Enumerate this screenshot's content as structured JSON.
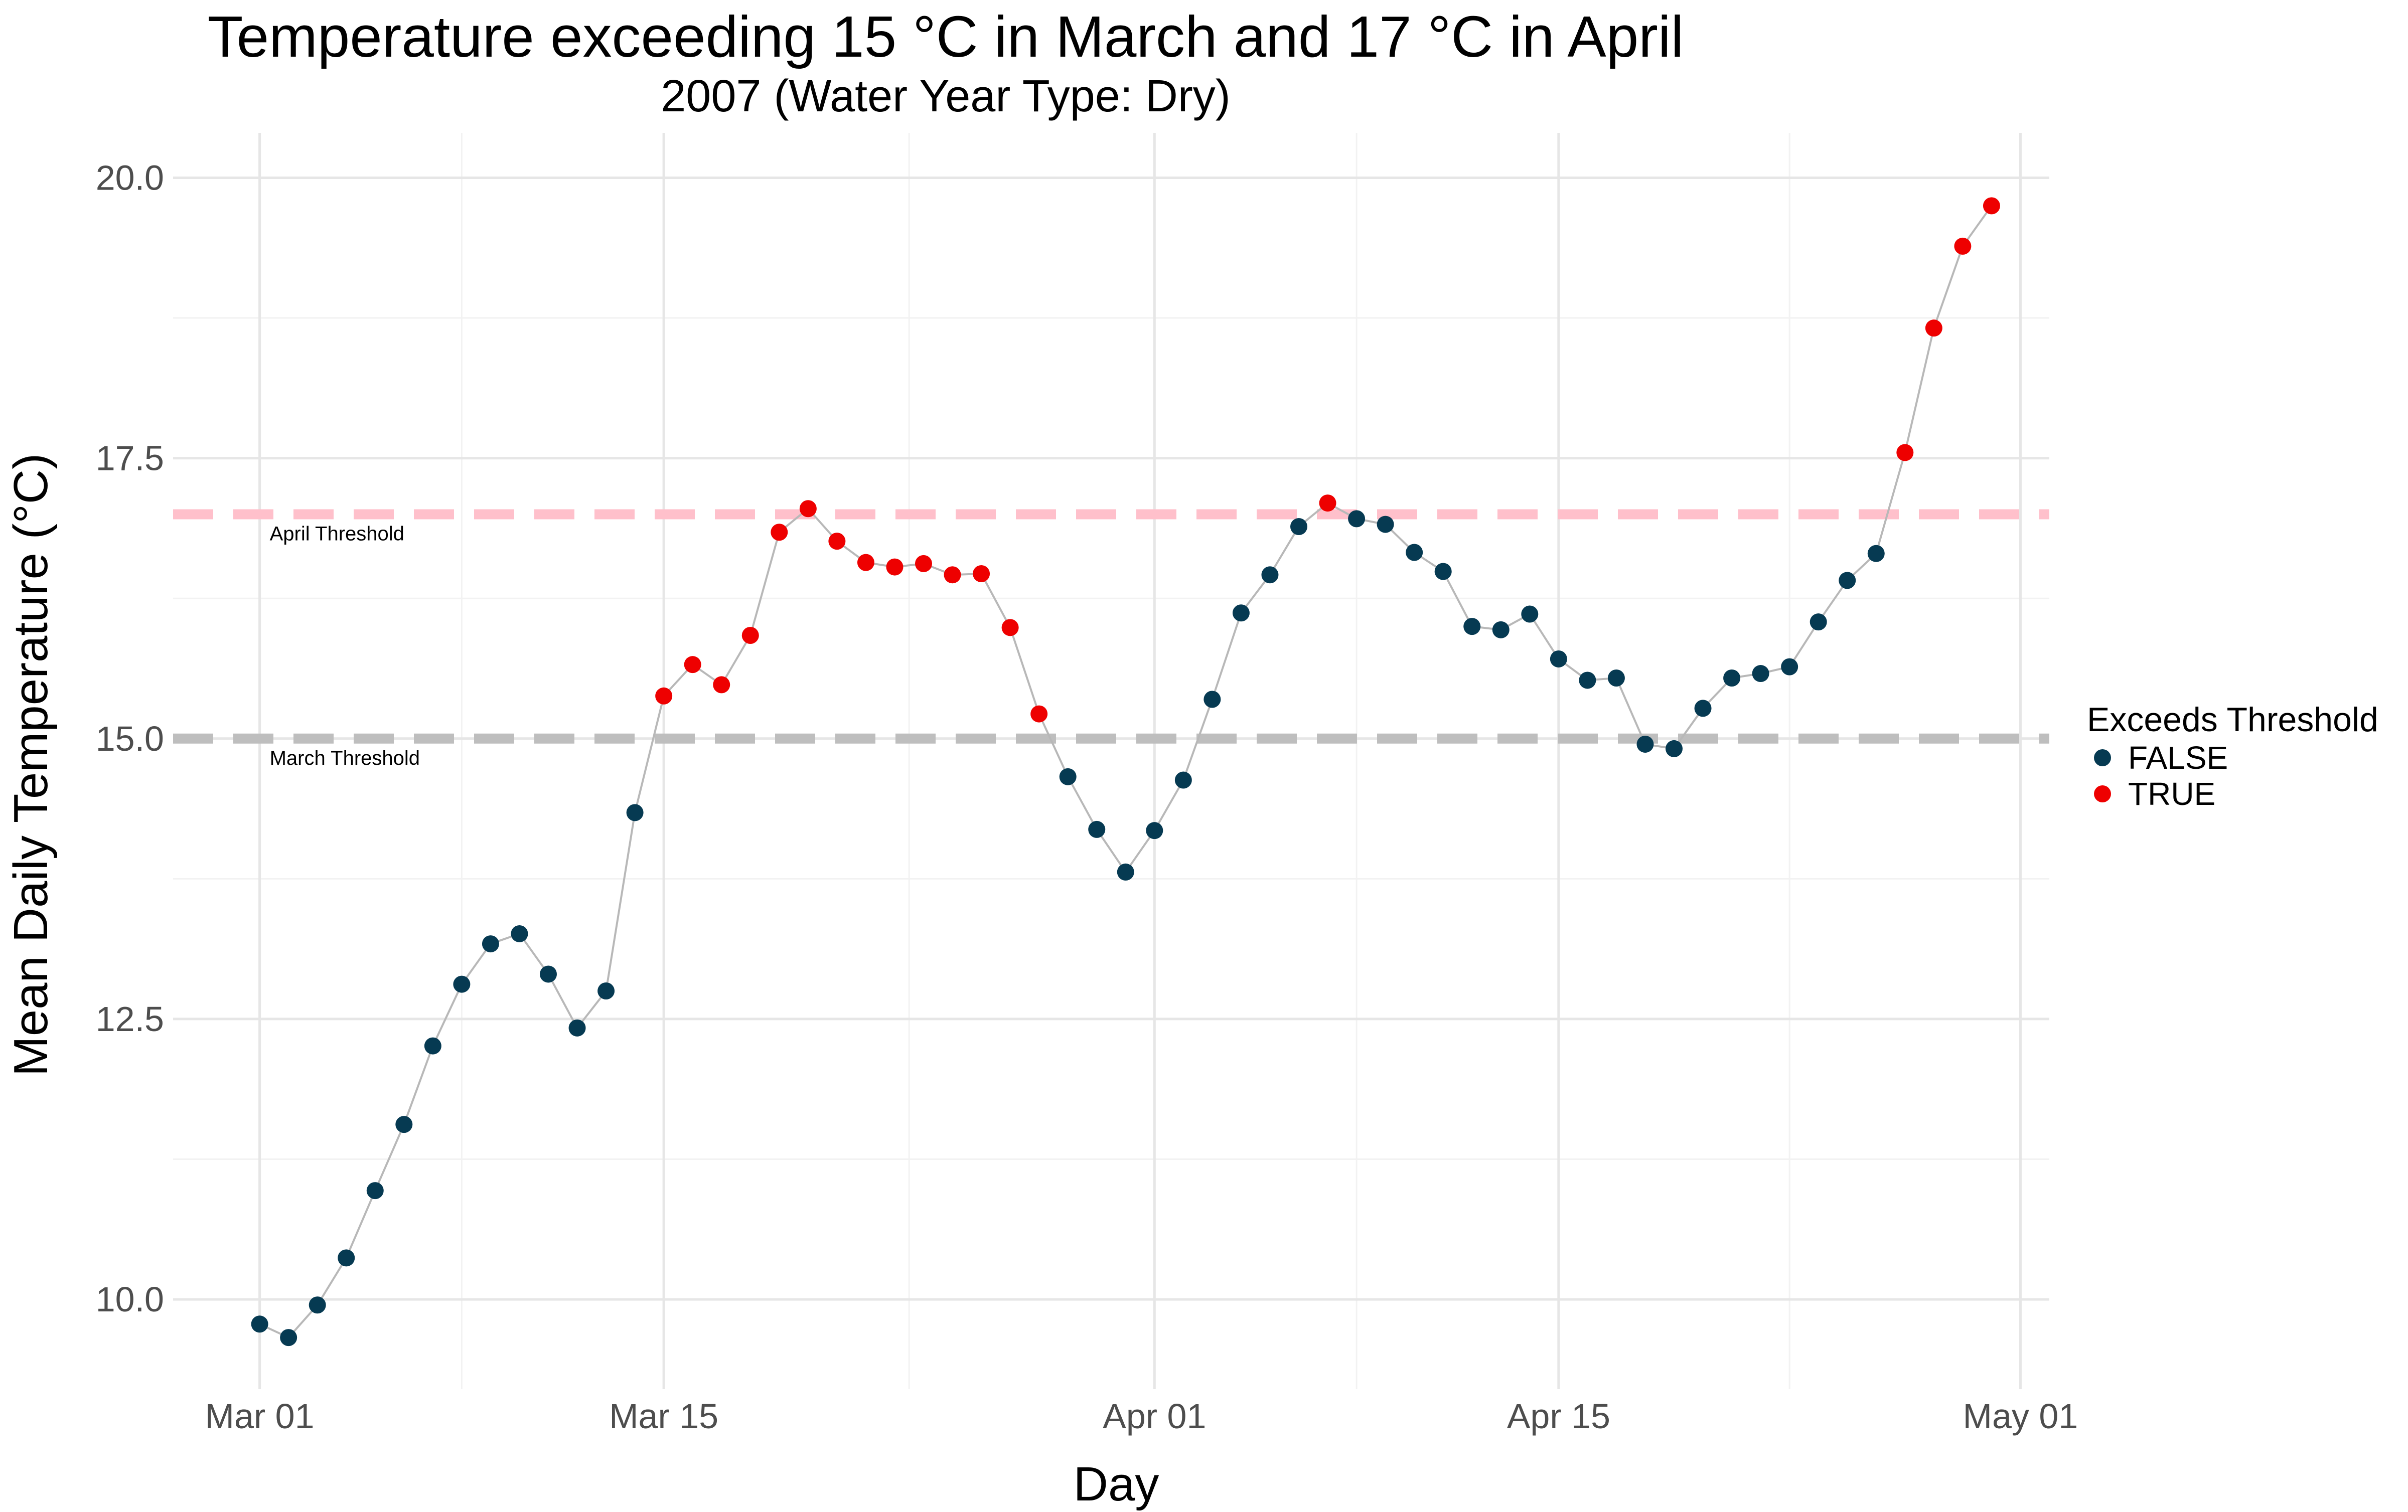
{
  "chart_data": {
    "type": "scatter",
    "title": "Temperature exceeding 15 °C in March and 17 °C in April",
    "subtitle": "2007 (Water Year Type: Dry)",
    "xlabel": "Day",
    "ylabel": "Mean Daily Temperature (°C)",
    "x_ticks": [
      {
        "date": "2007-03-01",
        "label": "Mar 01"
      },
      {
        "date": "2007-03-15",
        "label": "Mar 15"
      },
      {
        "date": "2007-04-01",
        "label": "Apr 01"
      },
      {
        "date": "2007-04-15",
        "label": "Apr 15"
      },
      {
        "date": "2007-05-01",
        "label": "May 01"
      }
    ],
    "xlim": [
      "2007-02-26",
      "2007-05-02"
    ],
    "y_ticks": [
      10.0,
      12.5,
      15.0,
      17.5,
      20.0
    ],
    "y_tick_labels": [
      "10.0",
      "12.5",
      "15.0",
      "17.5",
      "20.0"
    ],
    "ylim": [
      9.2,
      20.4
    ],
    "grid": true,
    "thresholds": [
      {
        "label": "April Threshold",
        "value": 17,
        "color": "#ffc0cb"
      },
      {
        "label": "March Threshold",
        "value": 15,
        "color": "#bebebe"
      }
    ],
    "legend": {
      "title": "Exceeds Threshold",
      "position": "right",
      "entries": [
        {
          "label": "FALSE",
          "color": "#063a52"
        },
        {
          "label": "TRUE",
          "color": "#ee0000"
        }
      ]
    },
    "line_color": "#b8b8b8",
    "points": [
      {
        "date": "2007-03-01",
        "value": 9.78,
        "exceeds": "FALSE"
      },
      {
        "date": "2007-03-02",
        "value": 9.66,
        "exceeds": "FALSE"
      },
      {
        "date": "2007-03-03",
        "value": 9.95,
        "exceeds": "FALSE"
      },
      {
        "date": "2007-03-04",
        "value": 10.37,
        "exceeds": "FALSE"
      },
      {
        "date": "2007-03-05",
        "value": 10.97,
        "exceeds": "FALSE"
      },
      {
        "date": "2007-03-06",
        "value": 11.56,
        "exceeds": "FALSE"
      },
      {
        "date": "2007-03-07",
        "value": 12.26,
        "exceeds": "FALSE"
      },
      {
        "date": "2007-03-08",
        "value": 12.81,
        "exceeds": "FALSE"
      },
      {
        "date": "2007-03-09",
        "value": 13.17,
        "exceeds": "FALSE"
      },
      {
        "date": "2007-03-10",
        "value": 13.26,
        "exceeds": "FALSE"
      },
      {
        "date": "2007-03-11",
        "value": 12.9,
        "exceeds": "FALSE"
      },
      {
        "date": "2007-03-12",
        "value": 12.42,
        "exceeds": "FALSE"
      },
      {
        "date": "2007-03-13",
        "value": 12.75,
        "exceeds": "FALSE"
      },
      {
        "date": "2007-03-14",
        "value": 14.34,
        "exceeds": "FALSE"
      },
      {
        "date": "2007-03-15",
        "value": 15.38,
        "exceeds": "TRUE"
      },
      {
        "date": "2007-03-16",
        "value": 15.66,
        "exceeds": "TRUE"
      },
      {
        "date": "2007-03-17",
        "value": 15.48,
        "exceeds": "TRUE"
      },
      {
        "date": "2007-03-18",
        "value": 15.92,
        "exceeds": "TRUE"
      },
      {
        "date": "2007-03-19",
        "value": 16.84,
        "exceeds": "TRUE"
      },
      {
        "date": "2007-03-20",
        "value": 17.05,
        "exceeds": "TRUE"
      },
      {
        "date": "2007-03-21",
        "value": 16.76,
        "exceeds": "TRUE"
      },
      {
        "date": "2007-03-22",
        "value": 16.57,
        "exceeds": "TRUE"
      },
      {
        "date": "2007-03-23",
        "value": 16.53,
        "exceeds": "TRUE"
      },
      {
        "date": "2007-03-24",
        "value": 16.56,
        "exceeds": "TRUE"
      },
      {
        "date": "2007-03-25",
        "value": 16.46,
        "exceeds": "TRUE"
      },
      {
        "date": "2007-03-26",
        "value": 16.47,
        "exceeds": "TRUE"
      },
      {
        "date": "2007-03-27",
        "value": 15.99,
        "exceeds": "TRUE"
      },
      {
        "date": "2007-03-28",
        "value": 15.22,
        "exceeds": "TRUE"
      },
      {
        "date": "2007-03-29",
        "value": 14.66,
        "exceeds": "FALSE"
      },
      {
        "date": "2007-03-30",
        "value": 14.19,
        "exceeds": "FALSE"
      },
      {
        "date": "2007-03-31",
        "value": 13.81,
        "exceeds": "FALSE"
      },
      {
        "date": "2007-04-01",
        "value": 14.18,
        "exceeds": "FALSE"
      },
      {
        "date": "2007-04-02",
        "value": 14.63,
        "exceeds": "FALSE"
      },
      {
        "date": "2007-04-03",
        "value": 15.35,
        "exceeds": "FALSE"
      },
      {
        "date": "2007-04-04",
        "value": 16.12,
        "exceeds": "FALSE"
      },
      {
        "date": "2007-04-05",
        "value": 16.46,
        "exceeds": "FALSE"
      },
      {
        "date": "2007-04-06",
        "value": 16.89,
        "exceeds": "FALSE"
      },
      {
        "date": "2007-04-07",
        "value": 17.1,
        "exceeds": "TRUE"
      },
      {
        "date": "2007-04-08",
        "value": 16.96,
        "exceeds": "FALSE"
      },
      {
        "date": "2007-04-09",
        "value": 16.91,
        "exceeds": "FALSE"
      },
      {
        "date": "2007-04-10",
        "value": 16.66,
        "exceeds": "FALSE"
      },
      {
        "date": "2007-04-11",
        "value": 16.49,
        "exceeds": "FALSE"
      },
      {
        "date": "2007-04-12",
        "value": 16.0,
        "exceeds": "FALSE"
      },
      {
        "date": "2007-04-13",
        "value": 15.97,
        "exceeds": "FALSE"
      },
      {
        "date": "2007-04-14",
        "value": 16.11,
        "exceeds": "FALSE"
      },
      {
        "date": "2007-04-15",
        "value": 15.71,
        "exceeds": "FALSE"
      },
      {
        "date": "2007-04-16",
        "value": 15.52,
        "exceeds": "FALSE"
      },
      {
        "date": "2007-04-17",
        "value": 15.54,
        "exceeds": "FALSE"
      },
      {
        "date": "2007-04-18",
        "value": 14.95,
        "exceeds": "FALSE"
      },
      {
        "date": "2007-04-19",
        "value": 14.91,
        "exceeds": "FALSE"
      },
      {
        "date": "2007-04-20",
        "value": 15.27,
        "exceeds": "FALSE"
      },
      {
        "date": "2007-04-21",
        "value": 15.54,
        "exceeds": "FALSE"
      },
      {
        "date": "2007-04-22",
        "value": 15.58,
        "exceeds": "FALSE"
      },
      {
        "date": "2007-04-23",
        "value": 15.64,
        "exceeds": "FALSE"
      },
      {
        "date": "2007-04-24",
        "value": 16.04,
        "exceeds": "FALSE"
      },
      {
        "date": "2007-04-25",
        "value": 16.41,
        "exceeds": "FALSE"
      },
      {
        "date": "2007-04-26",
        "value": 16.65,
        "exceeds": "FALSE"
      },
      {
        "date": "2007-04-27",
        "value": 17.55,
        "exceeds": "TRUE"
      },
      {
        "date": "2007-04-28",
        "value": 18.66,
        "exceeds": "TRUE"
      },
      {
        "date": "2007-04-29",
        "value": 19.39,
        "exceeds": "TRUE"
      },
      {
        "date": "2007-04-30",
        "value": 19.75,
        "exceeds": "TRUE"
      }
    ]
  }
}
